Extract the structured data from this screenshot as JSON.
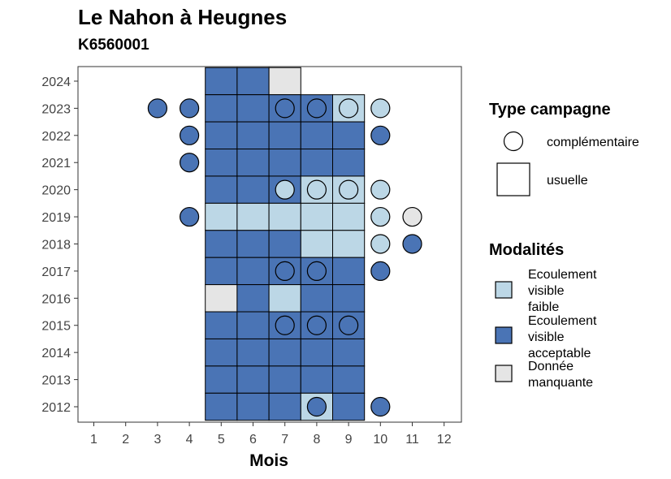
{
  "header": {
    "title": "Le Nahon à Heugnes",
    "subtitle": "K6560001"
  },
  "chart_data": {
    "type": "heatmap",
    "title": "Le Nahon à Heugnes",
    "subtitle": "K6560001",
    "xlabel": "Mois",
    "ylabel": "",
    "x_categories": [
      1,
      2,
      3,
      4,
      5,
      6,
      7,
      8,
      9,
      10,
      11,
      12
    ],
    "y_categories": [
      2012,
      2013,
      2014,
      2015,
      2016,
      2017,
      2018,
      2019,
      2020,
      2021,
      2022,
      2023,
      2024
    ],
    "colors": {
      "faible": "#bcd7e6",
      "acceptable": "#4a74b5",
      "manquante": "#e5e5e5"
    },
    "legend_type": {
      "title": "Type campagne",
      "items": [
        {
          "key": "complementaire",
          "label": "complémentaire",
          "shape": "circle"
        },
        {
          "key": "usuelle",
          "label": "usuelle",
          "shape": "square"
        }
      ]
    },
    "legend_modalites": {
      "title": "Modalités",
      "items": [
        {
          "key": "faible",
          "label": [
            "Ecoulement",
            "visible",
            "faible"
          ]
        },
        {
          "key": "acceptable",
          "label": [
            "Ecoulement",
            "visible",
            "acceptable"
          ]
        },
        {
          "key": "manquante",
          "label": [
            "Donnée",
            "manquante"
          ]
        }
      ]
    },
    "usuelle": [
      {
        "year": 2024,
        "month": 5,
        "mod": "acceptable"
      },
      {
        "year": 2024,
        "month": 6,
        "mod": "acceptable"
      },
      {
        "year": 2024,
        "month": 7,
        "mod": "manquante"
      },
      {
        "year": 2023,
        "month": 5,
        "mod": "acceptable"
      },
      {
        "year": 2023,
        "month": 6,
        "mod": "acceptable"
      },
      {
        "year": 2023,
        "month": 7,
        "mod": "acceptable"
      },
      {
        "year": 2023,
        "month": 8,
        "mod": "acceptable"
      },
      {
        "year": 2023,
        "month": 9,
        "mod": "faible"
      },
      {
        "year": 2022,
        "month": 5,
        "mod": "acceptable"
      },
      {
        "year": 2022,
        "month": 6,
        "mod": "acceptable"
      },
      {
        "year": 2022,
        "month": 7,
        "mod": "acceptable"
      },
      {
        "year": 2022,
        "month": 8,
        "mod": "acceptable"
      },
      {
        "year": 2022,
        "month": 9,
        "mod": "acceptable"
      },
      {
        "year": 2021,
        "month": 5,
        "mod": "acceptable"
      },
      {
        "year": 2021,
        "month": 6,
        "mod": "acceptable"
      },
      {
        "year": 2021,
        "month": 7,
        "mod": "acceptable"
      },
      {
        "year": 2021,
        "month": 8,
        "mod": "acceptable"
      },
      {
        "year": 2021,
        "month": 9,
        "mod": "acceptable"
      },
      {
        "year": 2020,
        "month": 5,
        "mod": "acceptable"
      },
      {
        "year": 2020,
        "month": 6,
        "mod": "acceptable"
      },
      {
        "year": 2020,
        "month": 7,
        "mod": "acceptable"
      },
      {
        "year": 2020,
        "month": 8,
        "mod": "faible"
      },
      {
        "year": 2020,
        "month": 9,
        "mod": "faible"
      },
      {
        "year": 2019,
        "month": 5,
        "mod": "faible"
      },
      {
        "year": 2019,
        "month": 6,
        "mod": "faible"
      },
      {
        "year": 2019,
        "month": 7,
        "mod": "faible"
      },
      {
        "year": 2019,
        "month": 8,
        "mod": "faible"
      },
      {
        "year": 2019,
        "month": 9,
        "mod": "faible"
      },
      {
        "year": 2018,
        "month": 5,
        "mod": "acceptable"
      },
      {
        "year": 2018,
        "month": 6,
        "mod": "acceptable"
      },
      {
        "year": 2018,
        "month": 7,
        "mod": "acceptable"
      },
      {
        "year": 2018,
        "month": 8,
        "mod": "faible"
      },
      {
        "year": 2018,
        "month": 9,
        "mod": "faible"
      },
      {
        "year": 2017,
        "month": 5,
        "mod": "acceptable"
      },
      {
        "year": 2017,
        "month": 6,
        "mod": "acceptable"
      },
      {
        "year": 2017,
        "month": 7,
        "mod": "acceptable"
      },
      {
        "year": 2017,
        "month": 8,
        "mod": "acceptable"
      },
      {
        "year": 2017,
        "month": 9,
        "mod": "acceptable"
      },
      {
        "year": 2016,
        "month": 5,
        "mod": "manquante"
      },
      {
        "year": 2016,
        "month": 6,
        "mod": "acceptable"
      },
      {
        "year": 2016,
        "month": 7,
        "mod": "faible"
      },
      {
        "year": 2016,
        "month": 8,
        "mod": "acceptable"
      },
      {
        "year": 2016,
        "month": 9,
        "mod": "acceptable"
      },
      {
        "year": 2015,
        "month": 5,
        "mod": "acceptable"
      },
      {
        "year": 2015,
        "month": 6,
        "mod": "acceptable"
      },
      {
        "year": 2015,
        "month": 7,
        "mod": "acceptable"
      },
      {
        "year": 2015,
        "month": 8,
        "mod": "acceptable"
      },
      {
        "year": 2015,
        "month": 9,
        "mod": "acceptable"
      },
      {
        "year": 2014,
        "month": 5,
        "mod": "acceptable"
      },
      {
        "year": 2014,
        "month": 6,
        "mod": "acceptable"
      },
      {
        "year": 2014,
        "month": 7,
        "mod": "acceptable"
      },
      {
        "year": 2014,
        "month": 8,
        "mod": "acceptable"
      },
      {
        "year": 2014,
        "month": 9,
        "mod": "acceptable"
      },
      {
        "year": 2013,
        "month": 5,
        "mod": "acceptable"
      },
      {
        "year": 2013,
        "month": 6,
        "mod": "acceptable"
      },
      {
        "year": 2013,
        "month": 7,
        "mod": "acceptable"
      },
      {
        "year": 2013,
        "month": 8,
        "mod": "acceptable"
      },
      {
        "year": 2013,
        "month": 9,
        "mod": "acceptable"
      },
      {
        "year": 2012,
        "month": 5,
        "mod": "acceptable"
      },
      {
        "year": 2012,
        "month": 6,
        "mod": "acceptable"
      },
      {
        "year": 2012,
        "month": 7,
        "mod": "acceptable"
      },
      {
        "year": 2012,
        "month": 8,
        "mod": "faible"
      },
      {
        "year": 2012,
        "month": 9,
        "mod": "acceptable"
      }
    ],
    "complementaire": [
      {
        "year": 2023,
        "month": 3,
        "mod": "acceptable"
      },
      {
        "year": 2023,
        "month": 4,
        "mod": "acceptable"
      },
      {
        "year": 2023,
        "month": 7,
        "mod": "acceptable"
      },
      {
        "year": 2023,
        "month": 8,
        "mod": "acceptable"
      },
      {
        "year": 2023,
        "month": 9,
        "mod": "faible"
      },
      {
        "year": 2023,
        "month": 10,
        "mod": "faible"
      },
      {
        "year": 2022,
        "month": 4,
        "mod": "acceptable"
      },
      {
        "year": 2022,
        "month": 10,
        "mod": "acceptable"
      },
      {
        "year": 2021,
        "month": 4,
        "mod": "acceptable"
      },
      {
        "year": 2020,
        "month": 7,
        "mod": "faible"
      },
      {
        "year": 2020,
        "month": 8,
        "mod": "faible"
      },
      {
        "year": 2020,
        "month": 9,
        "mod": "faible"
      },
      {
        "year": 2020,
        "month": 10,
        "mod": "faible"
      },
      {
        "year": 2019,
        "month": 4,
        "mod": "acceptable"
      },
      {
        "year": 2019,
        "month": 10,
        "mod": "faible"
      },
      {
        "year": 2019,
        "month": 11,
        "mod": "manquante"
      },
      {
        "year": 2018,
        "month": 10,
        "mod": "faible"
      },
      {
        "year": 2018,
        "month": 11,
        "mod": "acceptable"
      },
      {
        "year": 2017,
        "month": 7,
        "mod": "acceptable"
      },
      {
        "year": 2017,
        "month": 8,
        "mod": "acceptable"
      },
      {
        "year": 2017,
        "month": 10,
        "mod": "acceptable"
      },
      {
        "year": 2015,
        "month": 7,
        "mod": "acceptable"
      },
      {
        "year": 2015,
        "month": 8,
        "mod": "acceptable"
      },
      {
        "year": 2015,
        "month": 9,
        "mod": "acceptable"
      },
      {
        "year": 2012,
        "month": 8,
        "mod": "acceptable"
      },
      {
        "year": 2012,
        "month": 10,
        "mod": "acceptable"
      }
    ]
  }
}
